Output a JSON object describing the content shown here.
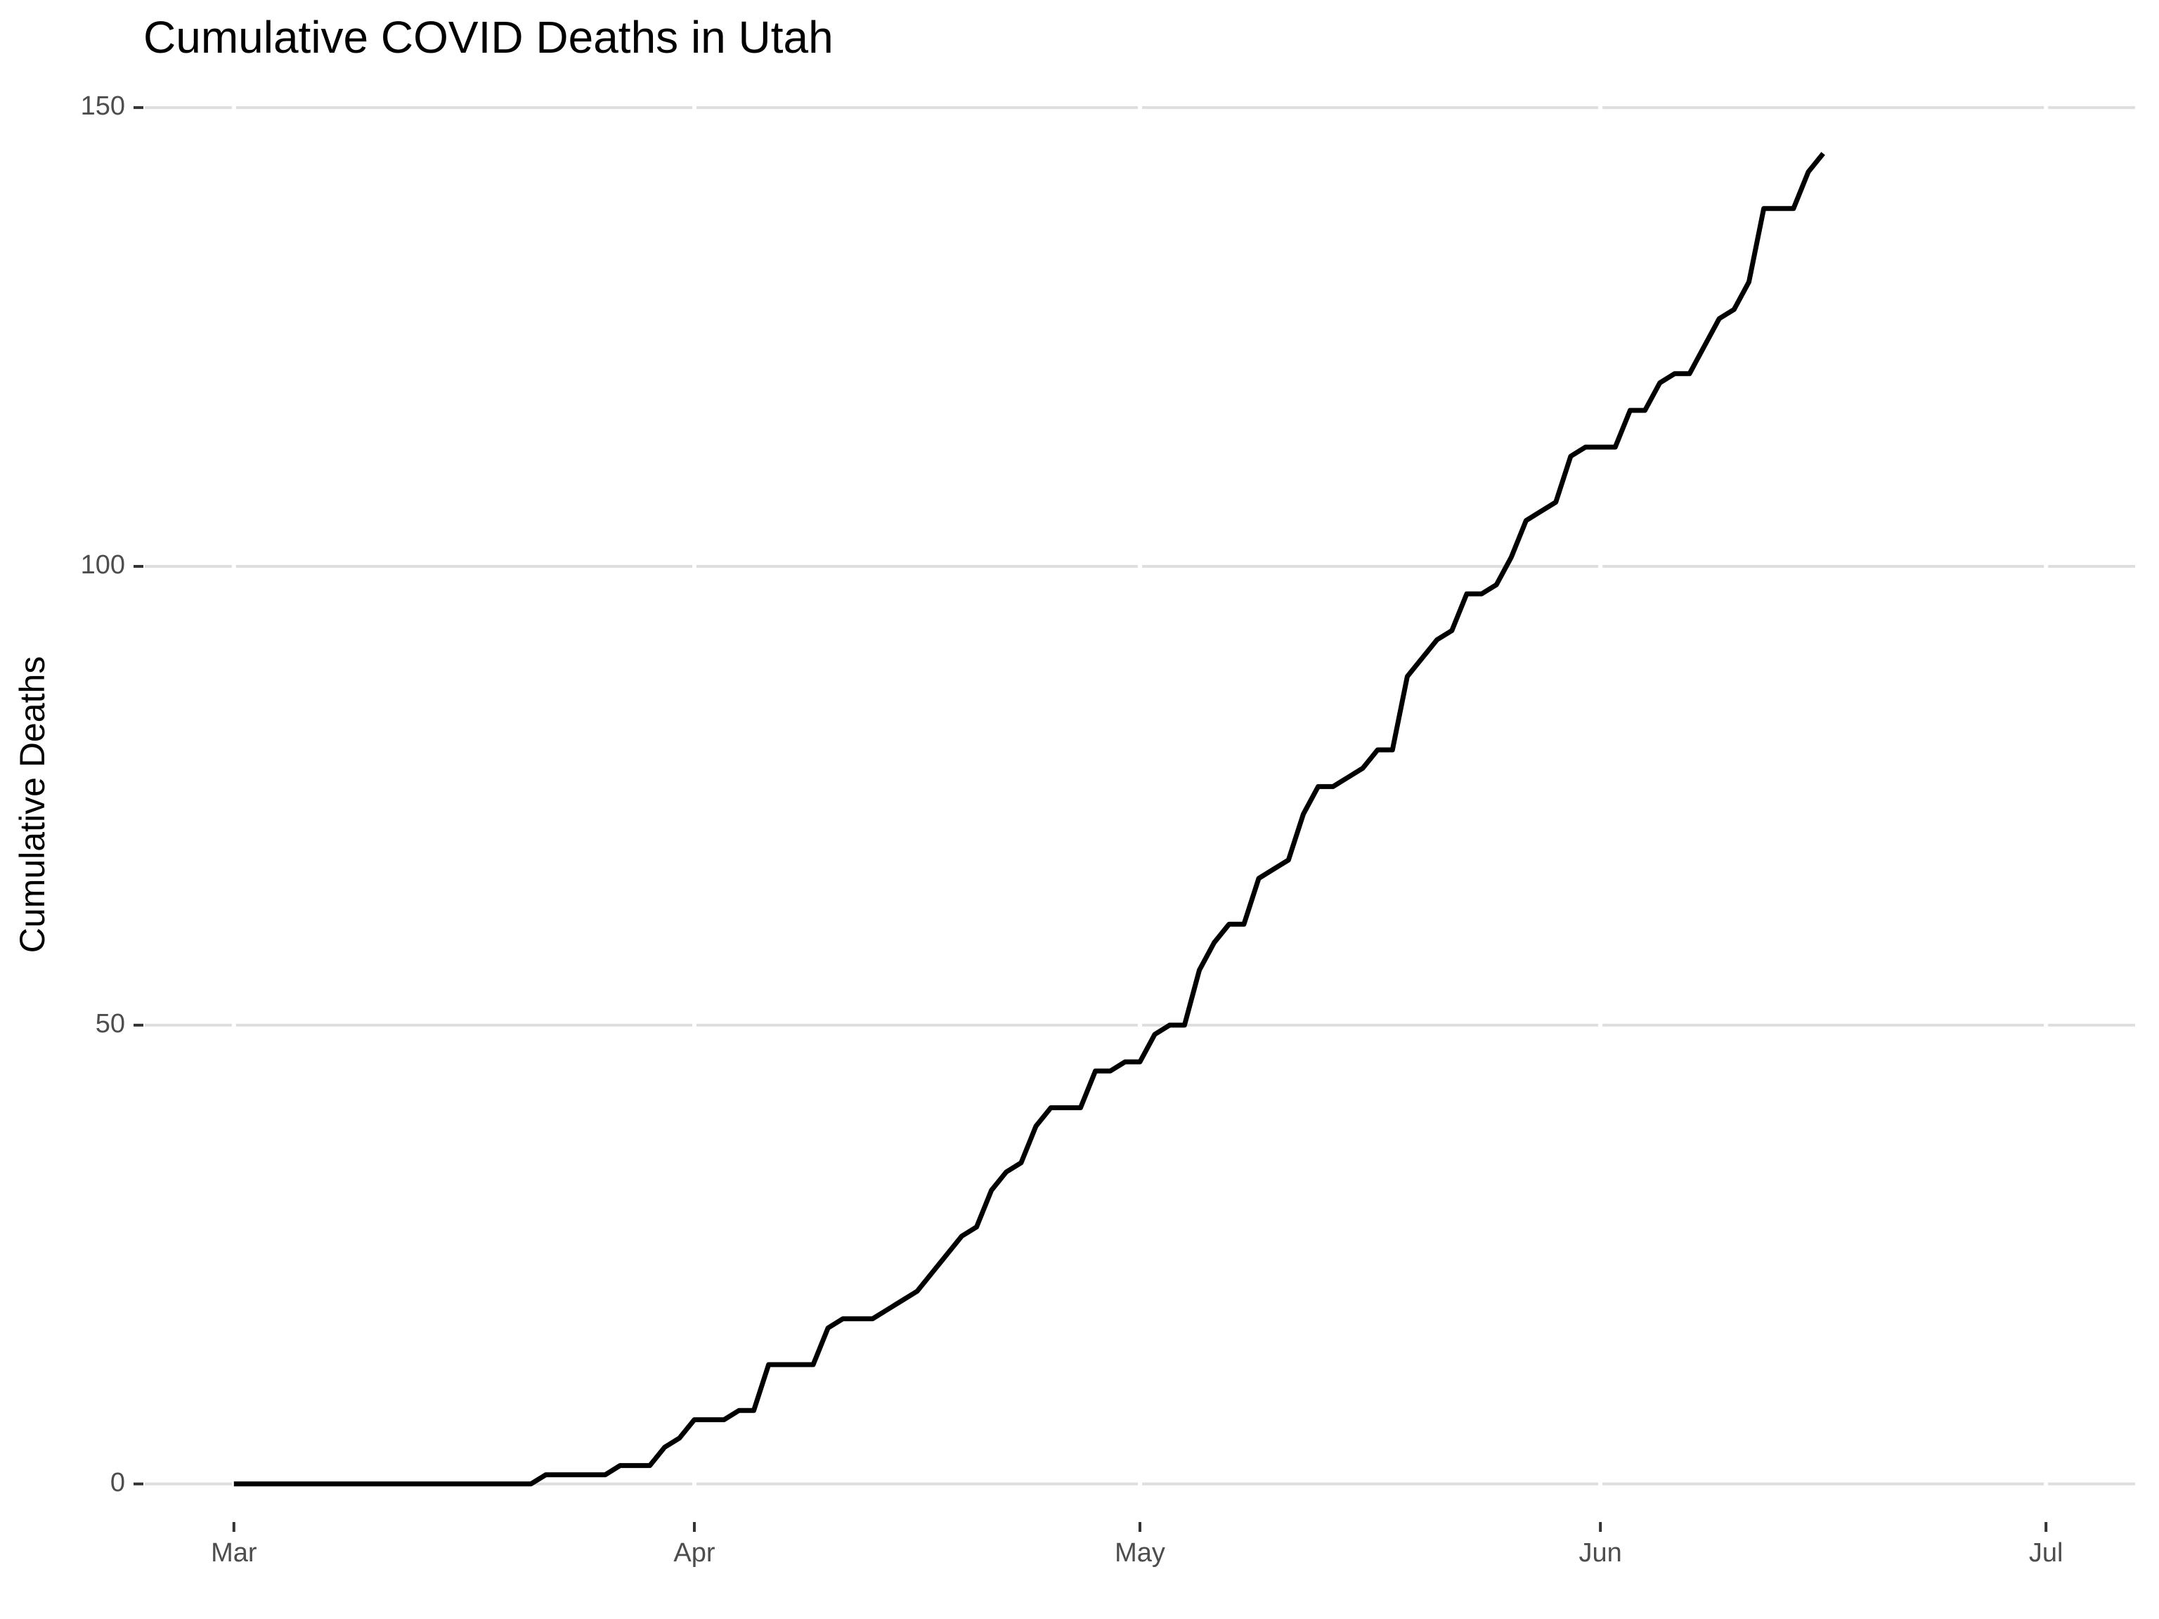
{
  "chart_data": {
    "type": "line",
    "title": "Cumulative COVID Deaths in Utah",
    "y_label": "Cumulative Deaths",
    "x": [
      0,
      1,
      2,
      3,
      4,
      5,
      6,
      7,
      8,
      9,
      10,
      11,
      12,
      13,
      14,
      15,
      16,
      17,
      18,
      19,
      20,
      21,
      22,
      23,
      24,
      25,
      26,
      27,
      28,
      29,
      30,
      31,
      32,
      33,
      34,
      35,
      36,
      37,
      38,
      39,
      40,
      41,
      42,
      43,
      44,
      45,
      46,
      47,
      48,
      49,
      50,
      51,
      52,
      53,
      54,
      55,
      56,
      57,
      58,
      59,
      60,
      61,
      62,
      63,
      64,
      65,
      66,
      67,
      68,
      69,
      70,
      71,
      72,
      73,
      74,
      75,
      76,
      77,
      78,
      79,
      80,
      81,
      82,
      83,
      84,
      85,
      86,
      87,
      88,
      89,
      90,
      91,
      92,
      93,
      94,
      95,
      96,
      97,
      98,
      99,
      100,
      101,
      102,
      103,
      104,
      105,
      106,
      107
    ],
    "series": [
      {
        "name": "Cumulative Deaths",
        "color": "#000000",
        "values": [
          0,
          0,
          0,
          0,
          0,
          0,
          0,
          0,
          0,
          0,
          0,
          0,
          0,
          0,
          0,
          0,
          0,
          0,
          0,
          0,
          0,
          1,
          1,
          1,
          1,
          1,
          2,
          2,
          2,
          4,
          5,
          7,
          7,
          7,
          8,
          8,
          13,
          13,
          13,
          13,
          17,
          18,
          18,
          18,
          19,
          20,
          21,
          23,
          25,
          27,
          28,
          32,
          34,
          35,
          39,
          41,
          41,
          41,
          45,
          45,
          46,
          46,
          49,
          50,
          50,
          56,
          59,
          61,
          61,
          66,
          67,
          68,
          73,
          76,
          76,
          77,
          78,
          80,
          80,
          88,
          90,
          92,
          93,
          97,
          97,
          98,
          101,
          105,
          106,
          107,
          112,
          113,
          113,
          113,
          117,
          117,
          120,
          121,
          121,
          124,
          127,
          128,
          131,
          139,
          139,
          139,
          143,
          145
        ]
      }
    ],
    "xlim": [
      -6,
      128
    ],
    "xticks": [
      {
        "value": 0,
        "label": "Mar"
      },
      {
        "value": 31,
        "label": "Apr"
      },
      {
        "value": 61,
        "label": "May"
      },
      {
        "value": 92,
        "label": "Jun"
      },
      {
        "value": 122,
        "label": "Jul"
      }
    ],
    "ylim": [
      -4,
      152
    ],
    "yticks": [
      0,
      50,
      100,
      150
    ],
    "grid": true
  }
}
